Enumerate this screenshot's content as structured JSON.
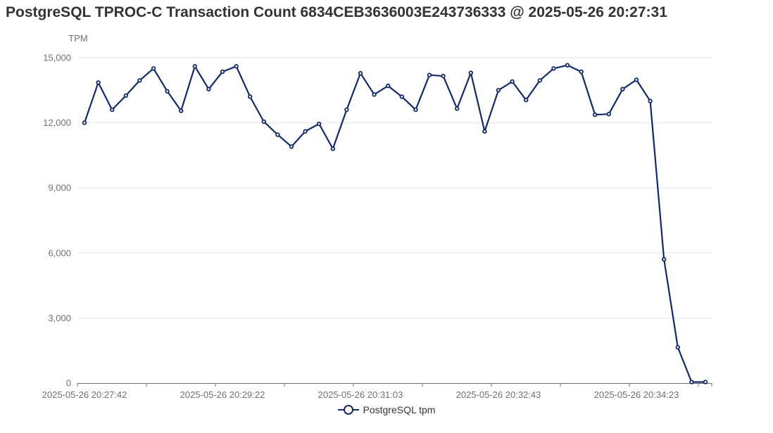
{
  "title": "PostgreSQL TPROC-C Transaction Count 6834CEB3636003E243736333 @ 2025-05-26 20:27:31",
  "colors": {
    "series": "#12296b",
    "grid": "#e0e6f1",
    "axis": "#6e7079"
  },
  "chart_data": {
    "type": "line",
    "title": "PostgreSQL TPROC-C Transaction Count 6834CEB3636003E243736333 @ 2025-05-26 20:27:31",
    "ylabel": "TPM",
    "xlabel": "",
    "ylim": [
      0,
      15000
    ],
    "yticks": [
      0,
      3000,
      6000,
      9000,
      12000,
      15000
    ],
    "ytick_labels": [
      "0",
      "3,000",
      "6,000",
      "9,000",
      "12,000",
      "15,000"
    ],
    "xtick_labels": [
      "2025-05-26 20:27:42",
      "2025-05-26 20:29:22",
      "2025-05-26 20:31:03",
      "2025-05-26 20:32:43",
      "2025-05-26 20:34:23"
    ],
    "xtick_indices": [
      0,
      10,
      20,
      30,
      40
    ],
    "grid": true,
    "legend": "bottom-center",
    "series": [
      {
        "name": "PostgreSQL tpm",
        "values": [
          12000,
          13850,
          12600,
          13250,
          13950,
          14500,
          13450,
          12550,
          14600,
          13550,
          14350,
          14600,
          13200,
          12050,
          11450,
          10900,
          11600,
          11950,
          10800,
          12600,
          14280,
          13300,
          13700,
          13200,
          12600,
          14200,
          14150,
          12650,
          14300,
          11600,
          13500,
          13900,
          13050,
          13950,
          14500,
          14650,
          14350,
          12370,
          12400,
          13550,
          13980,
          13000,
          5700,
          1650,
          50,
          50
        ]
      }
    ]
  }
}
